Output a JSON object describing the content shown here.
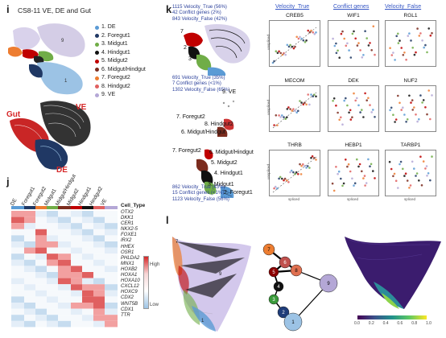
{
  "panel_i": {
    "label": "i",
    "title": "CS8-11 VE, DE and Gut",
    "legend": [
      {
        "num": "1.",
        "name": "DE",
        "color": "#5b9bd5"
      },
      {
        "num": "2.",
        "name": "Foregut1",
        "color": "#203864"
      },
      {
        "num": "3.",
        "name": "Midgut1",
        "color": "#70ad47"
      },
      {
        "num": "4.",
        "name": "Hindgut1",
        "color": "#111111"
      },
      {
        "num": "5.",
        "name": "Midgut2",
        "color": "#c00000"
      },
      {
        "num": "6.",
        "name": "Midgut/Hindgut",
        "color": "#7b2c1e"
      },
      {
        "num": "7.",
        "name": "Foregut2",
        "color": "#ed7d31"
      },
      {
        "num": "8.",
        "name": "Hindgut2",
        "color": "#e06060"
      },
      {
        "num": "9.",
        "name": "VE",
        "color": "#b4a7d6"
      }
    ],
    "labels_velocity": {
      "gut": "Gut",
      "ve": "VE",
      "de": "DE"
    }
  },
  "panel_j": {
    "label": "j",
    "columns": [
      "DE",
      "Foregut1",
      "Foregut2",
      "Midgut1",
      "Midgut/Hindgut",
      "Midgut2",
      "Hindgut1",
      "Hindgut2",
      "VE"
    ],
    "cell_type_label": "Cell_Type",
    "genes": [
      "OTX2",
      "DKK1",
      "CER1",
      "NKX2-5",
      "FOXE1",
      "IRX2",
      "HHEX",
      "OSR1",
      "PHLDA2",
      "MNX1",
      "HOXB2",
      "HOXA1",
      "HOXA10",
      "CXCL12",
      "HOXC9",
      "CDX2",
      "WNT5B",
      "CDX1",
      "TTR"
    ],
    "colorbar": {
      "high": "High",
      "low": "Low"
    }
  },
  "panel_k": {
    "label": "k",
    "block1": {
      "true": "1115 Velocity_True (56%)",
      "conflict": "42 Conflict genes (2%)",
      "false": "843 Velocity_False (42%)"
    },
    "block2": {
      "true": "691 Velocity_True (35%)",
      "conflict": "7 Conflict genes (<1%)",
      "false": "1302 Velocity_False (65%)"
    },
    "block3": {
      "true": "862 Velocity_True (43%)",
      "conflict": "15 Conflict genes (<1%)",
      "false": "1123 Velocity_False (56%)"
    },
    "stream_labels": {
      "a1": "7",
      "a2": "2",
      "a3": "3",
      "b1": "9. VE",
      "b2": "7. Foregut2",
      "b3": "8. Hindgut2",
      "b4": "6. Midgut/Hindgut",
      "c1": "7. Foregut2",
      "c2": "6. Midgut/Hindgut",
      "c3": "5. Midgut2",
      "c4": "4. Hindgut1",
      "c5": "3. Midgut1",
      "c6": "2. Foregut1"
    },
    "column_headers": [
      "Velocity_True",
      "Conflict genes",
      "Velocity_False"
    ],
    "genes": [
      "CREB5",
      "WIF1",
      "RGL1",
      "MECOM",
      "DEK",
      "NUF2",
      "THRB",
      "HEBP1",
      "TARBP1"
    ],
    "axis_x": "spliced",
    "axis_y": "unspliced"
  },
  "panel_l": {
    "label": "l",
    "nodes": [
      {
        "id": "7",
        "color": "#ed7d31"
      },
      {
        "id": "6",
        "color": "#c0504d"
      },
      {
        "id": "5",
        "color": "#8b0000"
      },
      {
        "id": "8",
        "color": "#e07050"
      },
      {
        "id": "4",
        "color": "#111111"
      },
      {
        "id": "3",
        "color": "#3a9a3a"
      },
      {
        "id": "2",
        "color": "#1f3d7a"
      },
      {
        "id": "1",
        "color": "#9cc3e5"
      },
      {
        "id": "9",
        "color": "#b4a7d6"
      }
    ],
    "colorbar_ticks": [
      "0.0",
      "0.2",
      "0.4",
      "0.6",
      "0.8",
      "1.0"
    ]
  }
}
